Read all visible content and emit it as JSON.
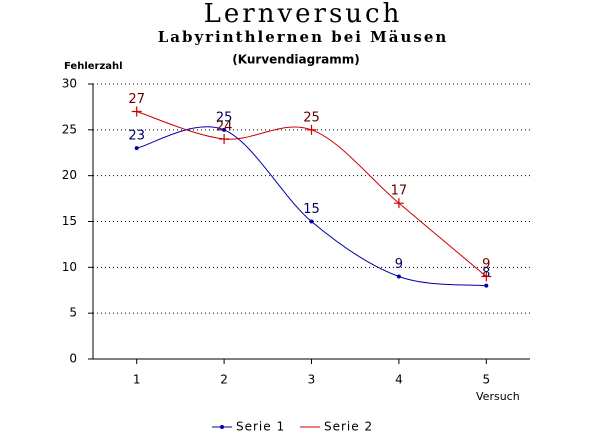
{
  "chart_data": {
    "type": "line",
    "title": "Lernversuch",
    "subtitle": "Labyrinthlernen bei Mäusen",
    "annotation": "(Kurvendiagramm)",
    "y_label": "Fehlerzahl",
    "x_label": "Versuch",
    "categories": [
      "1",
      "2",
      "3",
      "4",
      "5"
    ],
    "series": [
      {
        "name": "Serie 1",
        "color": "#0000aa",
        "values": [
          23,
          25,
          15,
          9,
          8
        ]
      },
      {
        "name": "Serie 2",
        "color": "#cc0000",
        "values": [
          27,
          24,
          25,
          17,
          9
        ]
      }
    ],
    "ylim": [
      0,
      30
    ],
    "yticks": [
      0,
      5,
      10,
      15,
      20,
      25,
      30
    ],
    "grid": true,
    "smooth": true,
    "legend": "bottom"
  }
}
